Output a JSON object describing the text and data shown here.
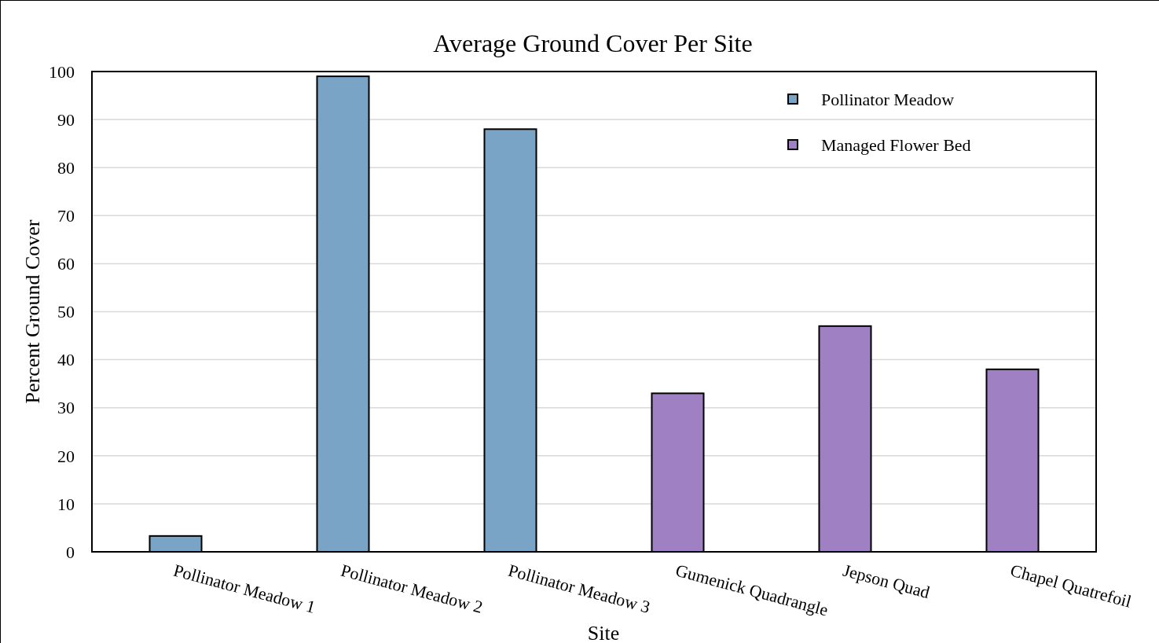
{
  "chart_data": {
    "type": "bar",
    "title": "Average Ground Cover Per Site",
    "xlabel": "Site",
    "ylabel": "Percent Ground Cover",
    "categories": [
      "Pollinator Meadow 1",
      "Pollinator Meadow 2",
      "Pollinator Meadow 3",
      "Gumenick Quadrangle",
      "Jepson Quad",
      "Chapel Quatrefoil"
    ],
    "series": [
      {
        "name": "Pollinator Meadow",
        "color": "#7aa4c6",
        "values": [
          3.3,
          99,
          88,
          null,
          null,
          null
        ]
      },
      {
        "name": "Managed Flower Bed",
        "color": "#9e80c3",
        "values": [
          null,
          null,
          null,
          33,
          47,
          38
        ]
      }
    ],
    "ylim": [
      0,
      100
    ],
    "yticks": [
      0,
      10,
      20,
      30,
      40,
      50,
      60,
      70,
      80,
      90,
      100
    ],
    "grid": "y",
    "legend": "top right"
  }
}
